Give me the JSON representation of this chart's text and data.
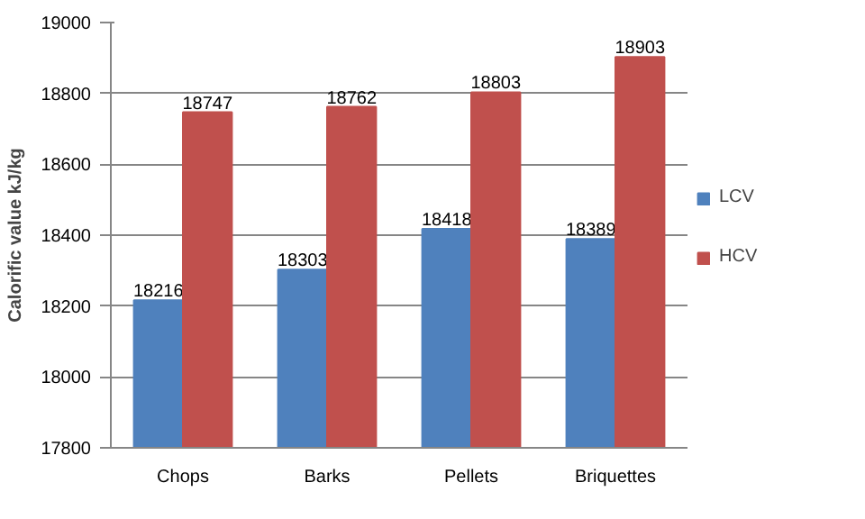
{
  "chart_data": {
    "type": "bar",
    "ylabel": "Calorific value kJ/kg",
    "categories": [
      "Chops",
      "Barks",
      "Pellets",
      "Briquettes"
    ],
    "series": [
      {
        "name": "LCV",
        "color": "#4f81bd",
        "values": [
          18216,
          18303,
          18418,
          18389
        ]
      },
      {
        "name": "HCV",
        "color": "#c0504d",
        "values": [
          18747,
          18762,
          18803,
          18903
        ]
      }
    ],
    "ylim": [
      17800,
      19000
    ],
    "yticks": [
      17800,
      18000,
      18200,
      18400,
      18600,
      18800,
      19000
    ],
    "grid": "y",
    "legend": "right",
    "data_labels": true
  }
}
